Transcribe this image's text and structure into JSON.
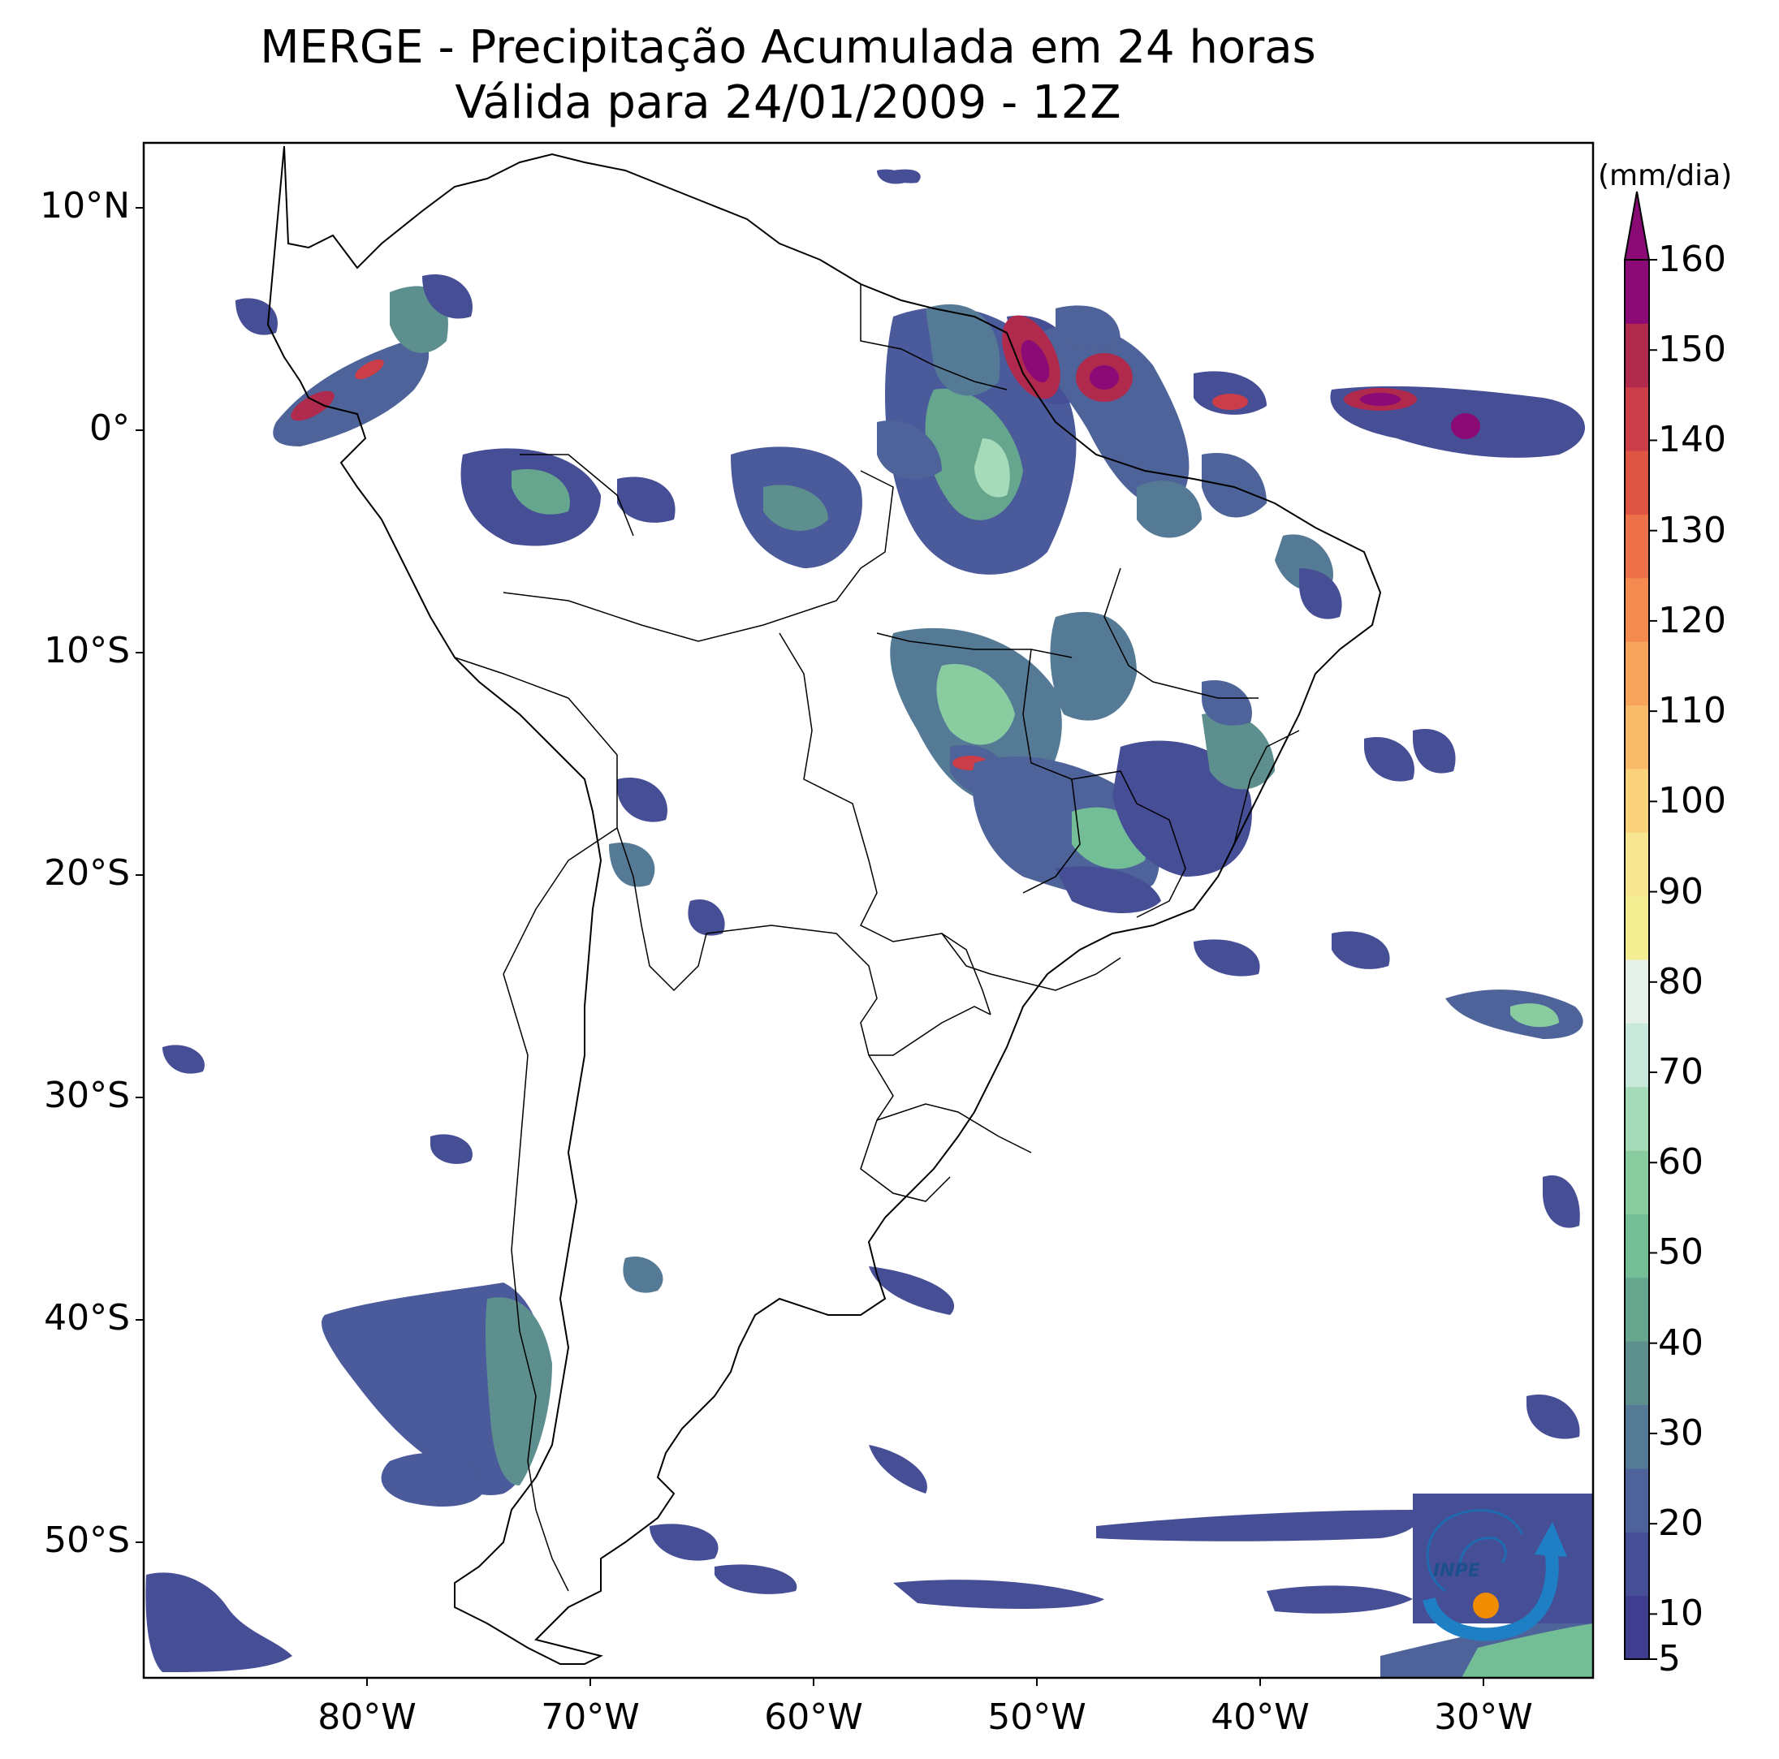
{
  "title": {
    "line1": "MERGE - Precipitação Acumulada em 24 horas",
    "line2": "Válida para 24/01/2009 - 12Z"
  },
  "map": {
    "region": "South America",
    "lon_range": [
      -90,
      -25
    ],
    "lat_range": [
      -56,
      13
    ],
    "lat_labels": [
      "10°N",
      "0°",
      "10°S",
      "20°S",
      "30°S",
      "40°S",
      "50°S"
    ],
    "lon_labels": [
      "80°W",
      "70°W",
      "60°W",
      "50°W",
      "40°W",
      "30°W"
    ],
    "logo_text": "INPE"
  },
  "colorbar": {
    "unit": "(mm/dia)",
    "tick_labels": [
      "5",
      "10",
      "20",
      "30",
      "40",
      "50",
      "60",
      "70",
      "80",
      "90",
      "100",
      "110",
      "120",
      "130",
      "140",
      "150",
      "160"
    ],
    "colors": [
      "#3e3d8f",
      "#464e96",
      "#4e6399",
      "#557a96",
      "#5d8f8f",
      "#66a68f",
      "#73be96",
      "#89cca0",
      "#a6dbb9",
      "#c7e8da",
      "#e4f0e8",
      "#f3ee92",
      "#f7e58f",
      "#fad27c",
      "#f9bb6a",
      "#f7a55d",
      "#f38b50",
      "#ec7048",
      "#df5543",
      "#cb3d48",
      "#b02a4d",
      "#8b0a76"
    ]
  }
}
